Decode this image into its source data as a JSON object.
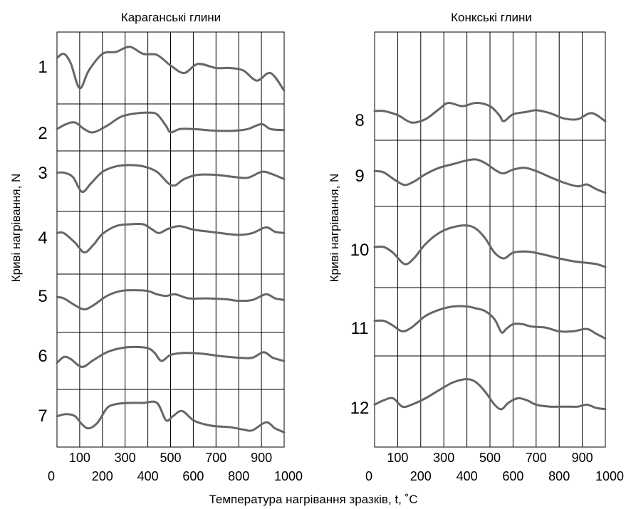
{
  "x_axis_label": "Температура нагрівання зразків, t, ˚С",
  "colors": {
    "curve": "#666666",
    "grid": "#000000"
  },
  "chart_data": [
    {
      "type": "line",
      "title": "Караганські глини",
      "ylabel": "Криві нагрівання, N",
      "xlim": [
        0,
        1000
      ],
      "x_ticks_top": [
        "100",
        "300",
        "500",
        "700",
        "900"
      ],
      "x_ticks_bottom": [
        "0",
        "200",
        "400",
        "600",
        "800",
        "1000"
      ],
      "series": [
        {
          "name": "1",
          "x": [
            0,
            30,
            60,
            100,
            140,
            200,
            260,
            320,
            380,
            440,
            500,
            560,
            620,
            700,
            760,
            820,
            880,
            940,
            1000
          ],
          "y": [
            0.7,
            0.78,
            0.6,
            0.1,
            0.45,
            0.78,
            0.82,
            0.92,
            0.78,
            0.76,
            0.55,
            0.4,
            0.58,
            0.5,
            0.5,
            0.45,
            0.25,
            0.4,
            0.05
          ]
        },
        {
          "name": "2",
          "x": [
            0,
            40,
            80,
            120,
            160,
            220,
            280,
            340,
            400,
            440,
            480,
            500,
            540,
            600,
            700,
            780,
            840,
            900,
            940,
            1000
          ],
          "y": [
            0.45,
            0.6,
            0.65,
            0.45,
            0.35,
            0.55,
            0.82,
            0.92,
            0.95,
            0.9,
            0.55,
            0.35,
            0.45,
            0.45,
            0.4,
            0.4,
            0.45,
            0.6,
            0.45,
            0.42
          ]
        },
        {
          "name": "3",
          "x": [
            0,
            30,
            70,
            110,
            150,
            200,
            260,
            320,
            380,
            440,
            490,
            520,
            560,
            620,
            700,
            780,
            840,
            900,
            940,
            1000
          ],
          "y": [
            0.7,
            0.7,
            0.6,
            0.25,
            0.45,
            0.72,
            0.85,
            0.88,
            0.85,
            0.72,
            0.45,
            0.4,
            0.55,
            0.65,
            0.65,
            0.6,
            0.58,
            0.72,
            0.68,
            0.55
          ]
        },
        {
          "name": "4",
          "x": [
            0,
            30,
            80,
            120,
            160,
            200,
            260,
            320,
            380,
            420,
            450,
            490,
            540,
            600,
            660,
            720,
            800,
            860,
            920,
            960,
            1000
          ],
          "y": [
            0.72,
            0.72,
            0.5,
            0.28,
            0.45,
            0.7,
            0.88,
            0.92,
            0.92,
            0.8,
            0.72,
            0.82,
            0.88,
            0.8,
            0.76,
            0.72,
            0.68,
            0.72,
            0.85,
            0.75,
            0.72
          ]
        },
        {
          "name": "5",
          "x": [
            0,
            30,
            80,
            120,
            160,
            220,
            280,
            340,
            400,
            440,
            480,
            520,
            580,
            660,
            740,
            800,
            860,
            920,
            960,
            1000
          ],
          "y": [
            0.65,
            0.62,
            0.45,
            0.35,
            0.45,
            0.68,
            0.8,
            0.82,
            0.8,
            0.72,
            0.68,
            0.72,
            0.62,
            0.62,
            0.6,
            0.56,
            0.58,
            0.72,
            0.62,
            0.58
          ]
        },
        {
          "name": "6",
          "x": [
            0,
            30,
            60,
            110,
            160,
            220,
            280,
            340,
            400,
            430,
            460,
            500,
            560,
            640,
            720,
            800,
            860,
            910,
            950,
            1000
          ],
          "y": [
            0.45,
            0.6,
            0.55,
            0.35,
            0.52,
            0.72,
            0.82,
            0.85,
            0.82,
            0.7,
            0.5,
            0.65,
            0.7,
            0.68,
            0.62,
            0.58,
            0.58,
            0.72,
            0.58,
            0.5
          ]
        },
        {
          "name": "7",
          "x": [
            0,
            40,
            80,
            110,
            140,
            180,
            220,
            260,
            320,
            380,
            440,
            480,
            510,
            550,
            600,
            650,
            700,
            760,
            820,
            860,
            920,
            960,
            1000
          ],
          "y": [
            0.55,
            0.6,
            0.55,
            0.35,
            0.25,
            0.4,
            0.75,
            0.85,
            0.88,
            0.88,
            0.88,
            0.45,
            0.55,
            0.68,
            0.45,
            0.35,
            0.3,
            0.28,
            0.22,
            0.2,
            0.4,
            0.25,
            0.15
          ]
        }
      ]
    },
    {
      "type": "line",
      "title": "Конкські глини",
      "ylabel": "Криві нагрівання, N",
      "xlim": [
        0,
        1000
      ],
      "x_ticks_top": [
        "100",
        "300",
        "500",
        "700",
        "900"
      ],
      "x_ticks_bottom": [
        "0",
        "200",
        "400",
        "600",
        "800",
        "1000"
      ],
      "series": [
        {
          "name": "8",
          "x": [
            0,
            40,
            100,
            160,
            220,
            280,
            320,
            380,
            440,
            500,
            540,
            560,
            600,
            660,
            700,
            760,
            820,
            880,
            940,
            1000
          ],
          "y": [
            0.5,
            0.5,
            0.4,
            0.22,
            0.3,
            0.55,
            0.7,
            0.62,
            0.7,
            0.62,
            0.4,
            0.25,
            0.42,
            0.48,
            0.52,
            0.45,
            0.32,
            0.3,
            0.45,
            0.25
          ]
        },
        {
          "name": "9",
          "x": [
            0,
            40,
            90,
            130,
            170,
            220,
            280,
            340,
            400,
            440,
            480,
            530,
            560,
            600,
            650,
            700,
            760,
            820,
            880,
            920,
            960,
            1000
          ],
          "y": [
            0.55,
            0.52,
            0.35,
            0.25,
            0.32,
            0.48,
            0.62,
            0.7,
            0.78,
            0.8,
            0.72,
            0.55,
            0.5,
            0.58,
            0.62,
            0.55,
            0.42,
            0.3,
            0.22,
            0.26,
            0.16,
            0.08
          ]
        },
        {
          "name": "10",
          "x": [
            0,
            40,
            80,
            130,
            170,
            220,
            280,
            340,
            400,
            440,
            480,
            520,
            560,
            600,
            660,
            720,
            800,
            860,
            920,
            960,
            1000
          ],
          "y": [
            0.5,
            0.5,
            0.4,
            0.2,
            0.3,
            0.55,
            0.75,
            0.85,
            0.88,
            0.82,
            0.65,
            0.4,
            0.3,
            0.4,
            0.42,
            0.38,
            0.3,
            0.25,
            0.22,
            0.2,
            0.15
          ]
        },
        {
          "name": "11",
          "x": [
            0,
            40,
            80,
            120,
            160,
            220,
            280,
            340,
            400,
            440,
            480,
            520,
            550,
            570,
            600,
            640,
            680,
            740,
            800,
            860,
            920,
            960,
            1000
          ],
          "y": [
            0.52,
            0.52,
            0.42,
            0.3,
            0.38,
            0.62,
            0.75,
            0.82,
            0.82,
            0.78,
            0.72,
            0.55,
            0.28,
            0.35,
            0.45,
            0.45,
            0.4,
            0.38,
            0.3,
            0.3,
            0.35,
            0.25,
            0.15
          ]
        },
        {
          "name": "12",
          "x": [
            0,
            40,
            80,
            120,
            160,
            220,
            280,
            340,
            400,
            440,
            480,
            520,
            550,
            580,
            620,
            660,
            700,
            760,
            820,
            880,
            920,
            960,
            1000
          ],
          "y": [
            0.45,
            0.52,
            0.55,
            0.42,
            0.45,
            0.55,
            0.68,
            0.8,
            0.85,
            0.8,
            0.65,
            0.45,
            0.38,
            0.48,
            0.55,
            0.52,
            0.45,
            0.42,
            0.42,
            0.42,
            0.45,
            0.4,
            0.38
          ]
        }
      ]
    }
  ]
}
